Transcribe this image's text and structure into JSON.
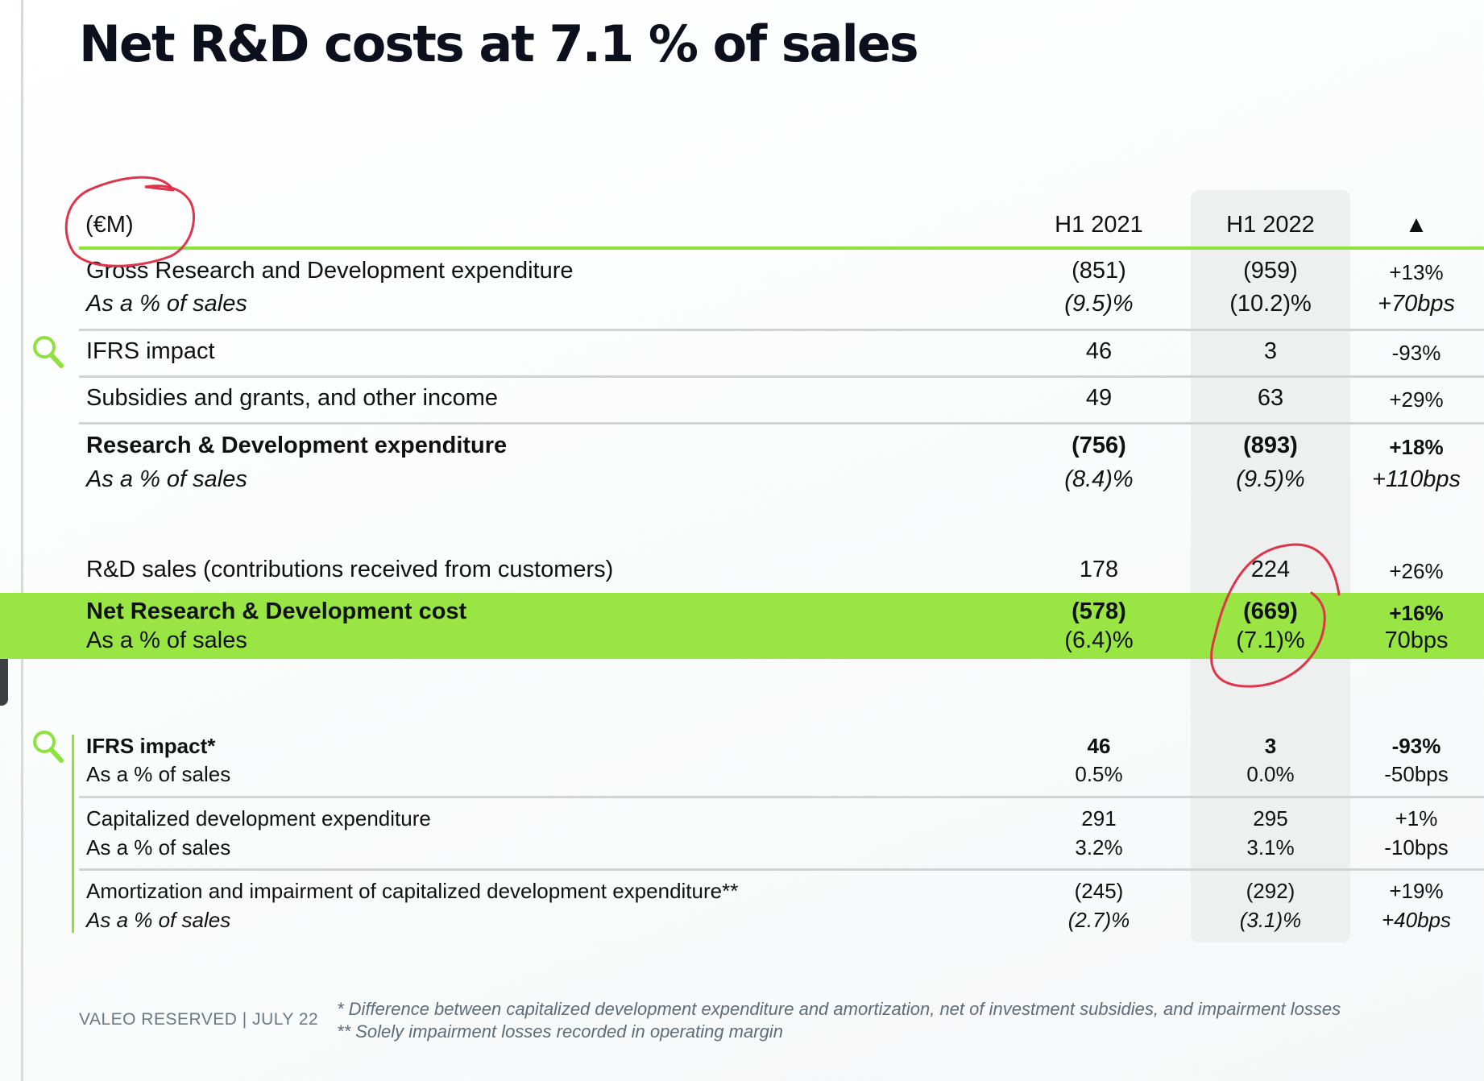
{
  "title": "Net R&D costs at 7.1 % of sales",
  "header": {
    "unit": "(€M)",
    "col1": "H1 2021",
    "col2": "H1 2022",
    "col3": "▲"
  },
  "rows": {
    "gross": {
      "label": "Gross Research and Development expenditure",
      "sub": "As a % of sales",
      "v1": "(851)",
      "v2": "(959)",
      "v3": "+13%",
      "s1": "(9.5)%",
      "s2": "(10.2)%",
      "s3": "+70bps"
    },
    "ifrs": {
      "label": "IFRS impact",
      "v1": "46",
      "v2": "3",
      "v3": "-93%"
    },
    "subsidies": {
      "label": "Subsidies and grants, and other income",
      "v1": "49",
      "v2": "63",
      "v3": "+29%"
    },
    "rd": {
      "label": "Research & Development expenditure",
      "sub": "As a % of sales",
      "v1": "(756)",
      "v2": "(893)",
      "v3": "+18%",
      "s1": "(8.4)%",
      "s2": "(9.5)%",
      "s3": "+110bps"
    },
    "rdsales": {
      "label": "R&D sales (contributions received from customers)",
      "v1": "178",
      "v2": "224",
      "v3": "+26%"
    },
    "net": {
      "label": "Net Research & Development cost",
      "sub": "As a % of sales",
      "v1": "(578)",
      "v2": "(669)",
      "v3": "+16%",
      "s1": "(6.4)%",
      "s2": "(7.1)%",
      "s3": "70bps"
    },
    "ifrs2": {
      "label": "IFRS impact*",
      "sub": "As a % of sales",
      "v1": "46",
      "v2": "3",
      "v3": "-93%",
      "s1": "0.5%",
      "s2": "0.0%",
      "s3": "-50bps"
    },
    "cap": {
      "label": "Capitalized development expenditure",
      "sub": "As a % of sales",
      "v1": "291",
      "v2": "295",
      "v3": "+1%",
      "s1": "3.2%",
      "s2": "3.1%",
      "s3": "-10bps"
    },
    "amort": {
      "label": "Amortization and impairment of capitalized development expenditure**",
      "sub": "As a % of sales",
      "v1": "(245)",
      "v2": "(292)",
      "v3": "+19%",
      "s1": "(2.7)%",
      "s2": "(3.1)%",
      "s3": "+40bps"
    }
  },
  "footer": {
    "left": "VALEO RESERVED | JULY 22",
    "note1": "* Difference between capitalized development expenditure and amortization, net of investment subsidies, and impairment losses",
    "note2": "** Solely impairment losses recorded in operating margin"
  },
  "colors": {
    "accent_green": "#98e544",
    "line_green": "#8ee23e",
    "annotation_red": "#e0344a",
    "title": "#0c0f1c"
  },
  "icons": [
    "magnifier-icon"
  ]
}
